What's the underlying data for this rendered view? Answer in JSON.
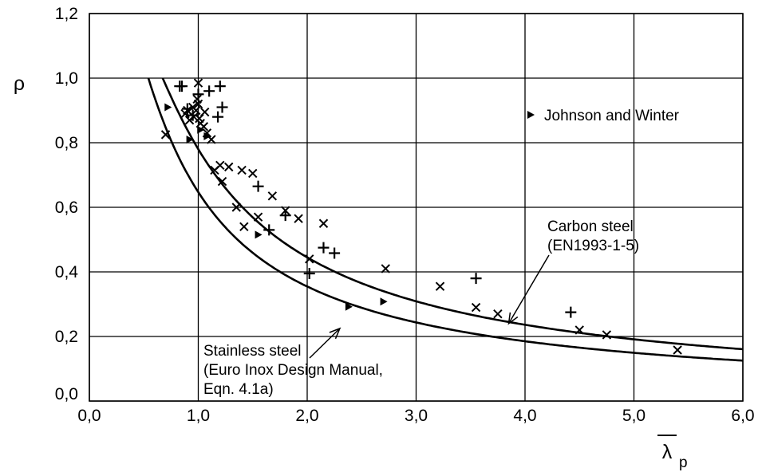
{
  "chart_data": {
    "type": "scatter",
    "title": "",
    "xlabel": "λ",
    "xlabel_subscript": "p",
    "xlabel_overbar": true,
    "ylabel": "ρ",
    "xlim": [
      0,
      6
    ],
    "ylim": [
      0,
      1.2
    ],
    "x_ticks": [
      "0,0",
      "1,0",
      "2,0",
      "3,0",
      "4,0",
      "5,0",
      "6,0"
    ],
    "y_ticks": [
      "0,0",
      "0,2",
      "0,4",
      "0,6",
      "0,8",
      "1,0",
      "1,2"
    ],
    "grid": true,
    "legend": {
      "position": "top-right",
      "marker": "triangle",
      "label": "Johnson and Winter"
    },
    "annotations": {
      "carbon": {
        "line1": "Carbon steel",
        "line2": "(EN1993-1-5)",
        "arrow_to": [
          3.85,
          0.24
        ]
      },
      "stainless": {
        "line1": "Stainless steel",
        "line2": "(Euro Inox Design Manual,",
        "line3": "Eqn. 4.1a)",
        "arrow_to": [
          2.3,
          0.225
        ]
      }
    },
    "curves": [
      {
        "id": "carbon",
        "formula": "rho = (lambda - 0.055*(3+psi))/lambda^2, psi = 1",
        "x_start": 0.673,
        "x_end": 6.0
      },
      {
        "id": "stainless",
        "formula": "rho = 0.772/lambda - 0.125/lambda^2",
        "x_start": 0.542,
        "x_end": 6.0
      }
    ],
    "series": [
      {
        "marker": "triangle",
        "points": [
          [
            0.72,
            0.91
          ],
          [
            0.92,
            0.81
          ],
          [
            1.02,
            0.84
          ],
          [
            1.08,
            0.82
          ],
          [
            1.55,
            0.515
          ],
          [
            2.38,
            0.292
          ],
          [
            2.7,
            0.308
          ]
        ]
      },
      {
        "marker": "plus",
        "points": [
          [
            0.83,
            0.975
          ],
          [
            0.85,
            0.975
          ],
          [
            0.9,
            0.905
          ],
          [
            0.95,
            0.885
          ],
          [
            1.0,
            0.95
          ],
          [
            1.1,
            0.96
          ],
          [
            1.2,
            0.975
          ],
          [
            1.22,
            0.91
          ],
          [
            1.18,
            0.88
          ],
          [
            1.55,
            0.665
          ],
          [
            1.65,
            0.53
          ],
          [
            1.8,
            0.575
          ],
          [
            2.02,
            0.395
          ],
          [
            2.15,
            0.475
          ],
          [
            2.25,
            0.458
          ],
          [
            3.55,
            0.38
          ],
          [
            4.42,
            0.275
          ]
        ]
      },
      {
        "marker": "cross",
        "points": [
          [
            0.7,
            0.825
          ],
          [
            0.88,
            0.89
          ],
          [
            0.9,
            0.9
          ],
          [
            0.92,
            0.87
          ],
          [
            0.95,
            0.91
          ],
          [
            0.96,
            0.88
          ],
          [
            0.98,
            0.9
          ],
          [
            0.99,
            0.935
          ],
          [
            1.0,
            0.985
          ],
          [
            1.0,
            0.92
          ],
          [
            1.01,
            0.875
          ],
          [
            1.02,
            0.86
          ],
          [
            1.05,
            0.85
          ],
          [
            1.06,
            0.895
          ],
          [
            1.08,
            0.83
          ],
          [
            1.12,
            0.81
          ],
          [
            1.15,
            0.715
          ],
          [
            1.2,
            0.73
          ],
          [
            1.22,
            0.68
          ],
          [
            1.28,
            0.725
          ],
          [
            1.35,
            0.6
          ],
          [
            1.4,
            0.715
          ],
          [
            1.42,
            0.54
          ],
          [
            1.5,
            0.705
          ],
          [
            1.55,
            0.57
          ],
          [
            1.68,
            0.635
          ],
          [
            1.8,
            0.59
          ],
          [
            1.92,
            0.565
          ],
          [
            2.02,
            0.44
          ],
          [
            2.15,
            0.55
          ],
          [
            2.72,
            0.41
          ],
          [
            3.22,
            0.355
          ],
          [
            3.55,
            0.29
          ],
          [
            3.75,
            0.27
          ],
          [
            4.5,
            0.22
          ],
          [
            4.75,
            0.205
          ],
          [
            5.4,
            0.158
          ]
        ]
      }
    ]
  }
}
